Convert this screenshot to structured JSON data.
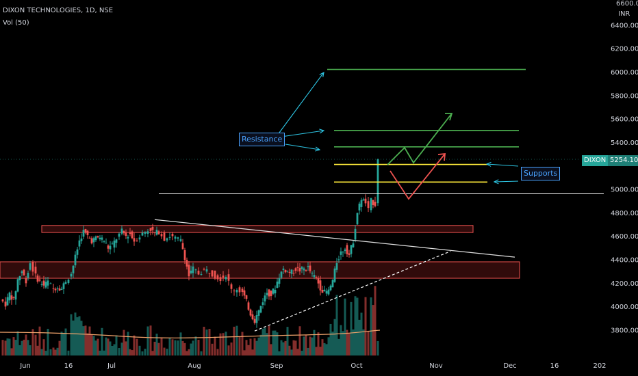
{
  "header": {
    "title": "DIXON TECHNOLOGIES, 1D, NSE",
    "indicator": "Vol (50)"
  },
  "price_axis": {
    "currency": "INR",
    "top_label": "6600.00",
    "ticks": [
      "6400.00",
      "6200.00",
      "6000.00",
      "5800.00",
      "5600.00",
      "5400.00",
      "5000.00",
      "4800.00",
      "4600.00",
      "4400.00",
      "4200.00",
      "4000.00",
      "3800.00"
    ]
  },
  "price_tag": {
    "symbol": "DIXON",
    "value": "5254.10"
  },
  "time_axis": {
    "ticks": [
      "Jun",
      "16",
      "Jul",
      "Aug",
      "Sep",
      "Oct",
      "Nov",
      "Dec",
      "16",
      "202"
    ]
  },
  "annotations": {
    "resistance": "Resistance",
    "supports": "Supports"
  },
  "colors": {
    "background": "#000000",
    "up": "#26a69a",
    "down": "#ef5350",
    "resistance_lines": "#4caf50",
    "support_lines": "#ffeb3b",
    "annotation_text": "#4aa3ff",
    "zone_fill": "#5a1414"
  },
  "chart_data": {
    "type": "candlestick",
    "title": "DIXON TECHNOLOGIES, 1D, NSE",
    "y_axis": {
      "min": 3700,
      "max": 6700,
      "unit": "INR"
    },
    "resistance_levels": [
      6020,
      5500,
      5360
    ],
    "support_levels": [
      5210,
      5060
    ],
    "horizontal_level": 4960,
    "last_close": 5254.1,
    "close_path": [
      [
        0,
        4060
      ],
      [
        8,
        4020
      ],
      [
        14,
        4110
      ],
      [
        20,
        4050
      ],
      [
        26,
        4230
      ],
      [
        32,
        4300
      ],
      [
        38,
        4220
      ],
      [
        44,
        4370
      ],
      [
        52,
        4260
      ],
      [
        58,
        4210
      ],
      [
        64,
        4180
      ],
      [
        70,
        4210
      ],
      [
        78,
        4150
      ],
      [
        84,
        4170
      ],
      [
        90,
        4150
      ],
      [
        96,
        4220
      ],
      [
        104,
        4280
      ],
      [
        110,
        4420
      ],
      [
        116,
        4560
      ],
      [
        122,
        4640
      ],
      [
        128,
        4600
      ],
      [
        134,
        4560
      ],
      [
        140,
        4580
      ],
      [
        146,
        4590
      ],
      [
        152,
        4560
      ],
      [
        158,
        4500
      ],
      [
        164,
        4520
      ],
      [
        170,
        4580
      ],
      [
        178,
        4640
      ],
      [
        184,
        4600
      ],
      [
        190,
        4620
      ],
      [
        196,
        4560
      ],
      [
        204,
        4600
      ],
      [
        212,
        4640
      ],
      [
        220,
        4660
      ],
      [
        226,
        4620
      ],
      [
        232,
        4640
      ],
      [
        240,
        4580
      ],
      [
        248,
        4600
      ],
      [
        256,
        4580
      ],
      [
        264,
        4560
      ],
      [
        270,
        4420
      ],
      [
        276,
        4260
      ],
      [
        282,
        4320
      ],
      [
        290,
        4280
      ],
      [
        298,
        4310
      ],
      [
        306,
        4300
      ],
      [
        314,
        4260
      ],
      [
        322,
        4240
      ],
      [
        330,
        4270
      ],
      [
        338,
        4140
      ],
      [
        346,
        4150
      ],
      [
        354,
        4120
      ],
      [
        360,
        4040
      ],
      [
        366,
        3940
      ],
      [
        372,
        3880
      ],
      [
        378,
        3960
      ],
      [
        384,
        4050
      ],
      [
        390,
        4120
      ],
      [
        396,
        4100
      ],
      [
        402,
        4160
      ],
      [
        408,
        4260
      ],
      [
        414,
        4320
      ],
      [
        420,
        4300
      ],
      [
        426,
        4290
      ],
      [
        432,
        4320
      ],
      [
        438,
        4310
      ],
      [
        444,
        4320
      ],
      [
        450,
        4330
      ],
      [
        456,
        4270
      ],
      [
        462,
        4240
      ],
      [
        468,
        4160
      ],
      [
        474,
        4120
      ],
      [
        480,
        4130
      ],
      [
        486,
        4220
      ],
      [
        492,
        4380
      ],
      [
        498,
        4460
      ],
      [
        504,
        4500
      ],
      [
        510,
        4440
      ],
      [
        516,
        4560
      ],
      [
        522,
        4800
      ],
      [
        528,
        4920
      ],
      [
        534,
        4880
      ],
      [
        538,
        4820
      ],
      [
        542,
        4900
      ],
      [
        548,
        4870
      ],
      [
        552,
        5254
      ]
    ]
  }
}
